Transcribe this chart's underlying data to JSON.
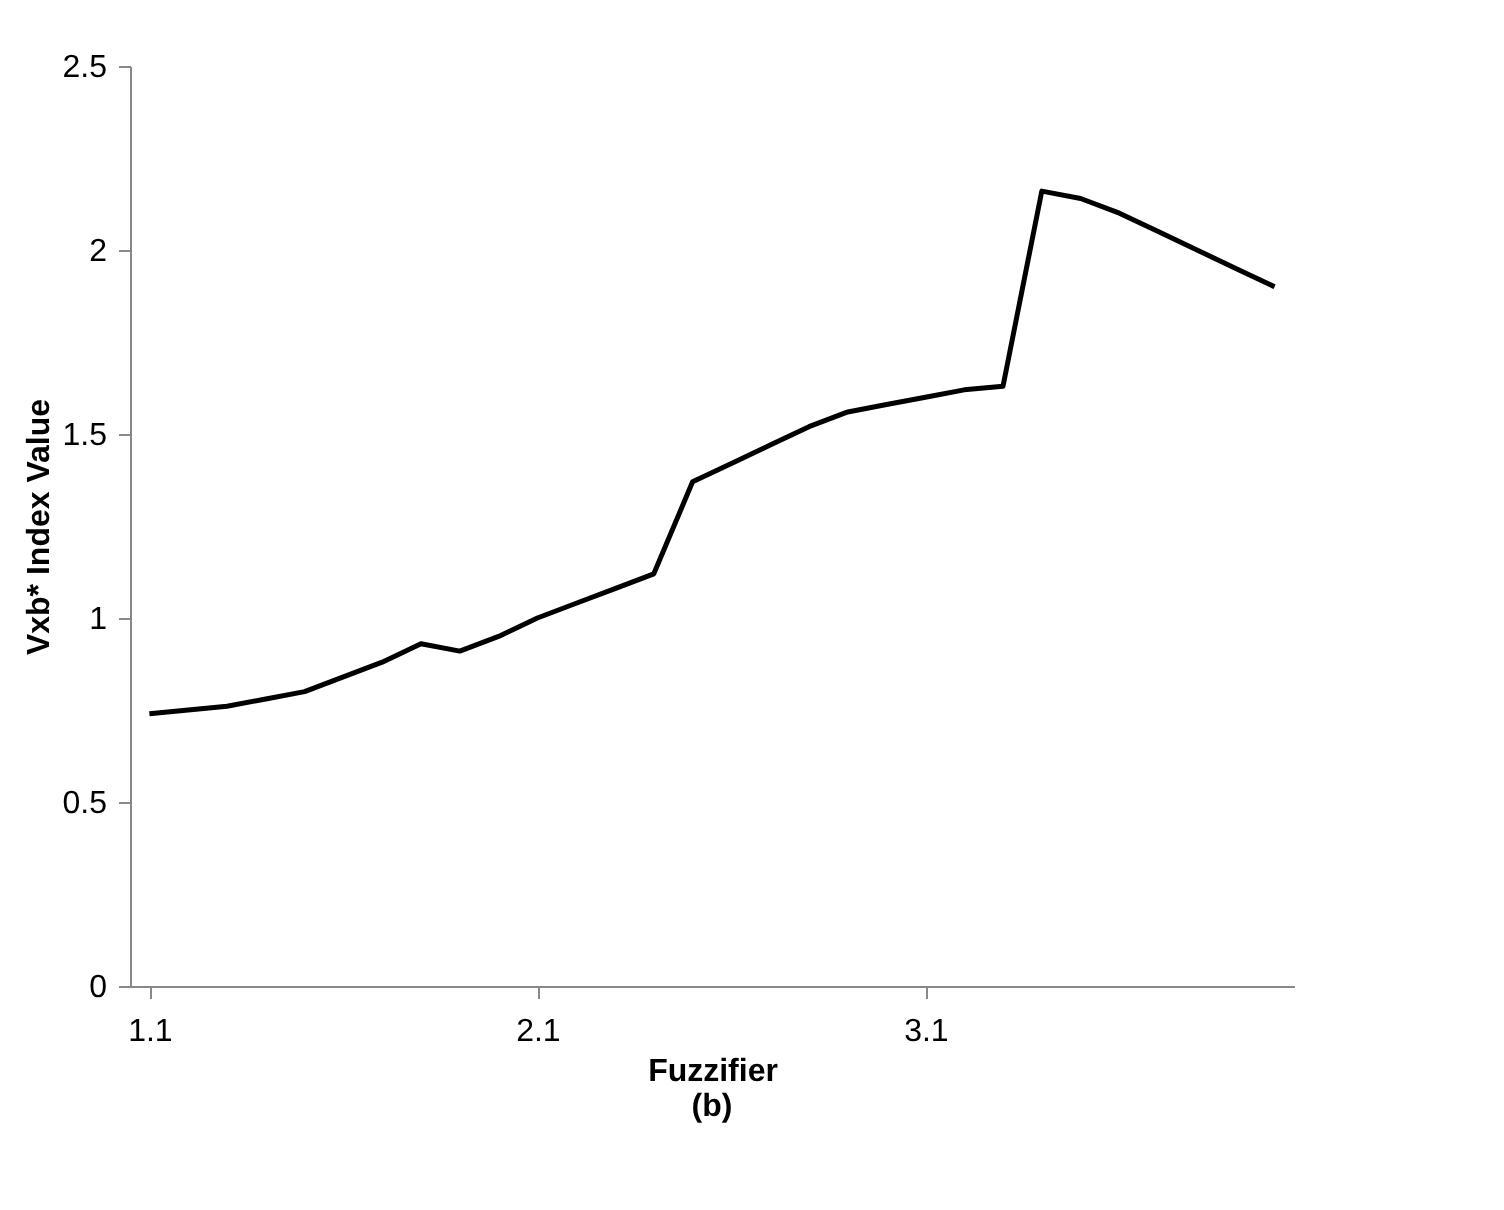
{
  "chart_data": {
    "type": "line",
    "x": [
      1.1,
      1.2,
      1.3,
      1.4,
      1.5,
      1.6,
      1.7,
      1.8,
      1.9,
      2.0,
      2.1,
      2.2,
      2.3,
      2.4,
      2.5,
      2.6,
      2.7,
      2.8,
      2.9,
      3.0,
      3.1,
      3.2,
      3.3,
      3.4,
      3.5,
      3.6,
      3.7,
      3.8,
      3.9,
      4.0
    ],
    "series": [
      {
        "color": "#000000",
        "values": [
          0.74,
          0.75,
          0.76,
          0.78,
          0.8,
          0.84,
          0.88,
          0.93,
          0.91,
          0.95,
          1.0,
          1.04,
          1.08,
          1.12,
          1.37,
          1.42,
          1.47,
          1.52,
          1.56,
          1.58,
          1.6,
          1.62,
          1.63,
          2.16,
          2.14,
          2.1,
          2.05,
          2.0,
          1.95,
          1.9
        ]
      }
    ],
    "xlabel": "Fuzzifier",
    "ylabel": "Vxb* Index Value",
    "annotations": [
      "(b)"
    ],
    "xlim": [
      1.05,
      4.05
    ],
    "xticks": [
      1.1,
      2.1,
      3.1
    ],
    "ylim": [
      0,
      2.5
    ],
    "yticks": [
      0,
      0.5,
      1,
      1.5,
      2,
      2.5
    ],
    "grid": false,
    "legend": false,
    "marker": "none",
    "line_style": "solid"
  }
}
